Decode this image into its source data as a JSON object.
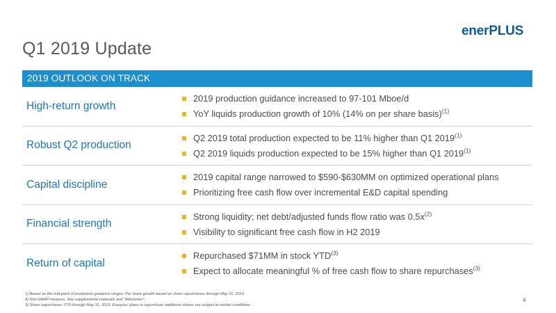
{
  "slide": {
    "title": "Q1 2019 Update",
    "page_number": "4"
  },
  "logo": {
    "part1": "ener",
    "part2": "PLUS"
  },
  "colors": {
    "banner": "#1c8fcf",
    "label": "#1b75bb",
    "bullet": "#e8b624",
    "logo": "#0b5d93"
  },
  "banner": {
    "text": "2019 OUTLOOK ON TRACK"
  },
  "rows": [
    {
      "label": "High-return growth",
      "bullets": [
        {
          "text": "2019 production guidance increased to 97-101 Mboe/d",
          "sup": ""
        },
        {
          "text": "YoY liquids production growth of 10% (14% on per share basis)",
          "sup": "(1)"
        }
      ]
    },
    {
      "label": "Robust Q2 production",
      "bullets": [
        {
          "text": "Q2 2019 total production expected to be 11% higher than Q1 2019",
          "sup": "(1)"
        },
        {
          "text": "Q2 2019 liquids production expected to be 15% higher than Q1 2019",
          "sup": "(1)"
        }
      ]
    },
    {
      "label": "Capital discipline",
      "bullets": [
        {
          "text": "2019 capital range narrowed to $590-$630MM on optimized operational plans",
          "sup": ""
        },
        {
          "text": "Prioritizing free cash flow over incremental E&D capital spending",
          "sup": ""
        }
      ]
    },
    {
      "label": "Financial strength",
      "bullets": [
        {
          "text": "Strong liquidity; net debt/adjusted funds flow ratio was 0.5x",
          "sup": "(2)"
        },
        {
          "text": "Visibility to significant free cash flow in H2 2019",
          "sup": ""
        }
      ]
    },
    {
      "label": "Return of capital",
      "bullets": [
        {
          "text": "Repurchased $71MM in stock YTD",
          "sup": "(3)"
        },
        {
          "text": "Expect to allocate meaningful % of free cash flow to share repurchases",
          "sup": "(3)"
        }
      ]
    }
  ],
  "footnotes": [
    "1)  Based on the mid-point of production guidance ranges. Per share growth based on share repurchases through May 31, 2019.",
    "2)  Non-GAAP measure. See supplemental materials and \"Advisories\".",
    "3)  Share repurchases YTD through May 31, 2019. Enerplus' plans to repurchase additional shares are subject to market conditions."
  ]
}
